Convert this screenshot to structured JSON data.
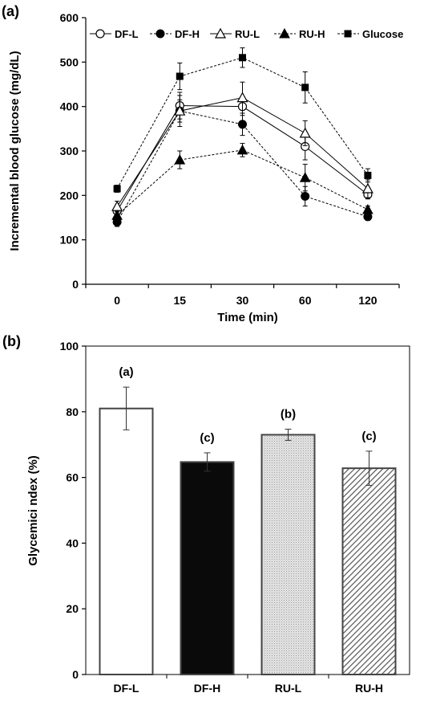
{
  "chart_data": [
    {
      "panel_label": "(a)",
      "type": "line",
      "xlabel": "Time (min)",
      "ylabel": "Incremental blood glucose (mg/dL)",
      "categories": [
        "0",
        "15",
        "30",
        "60",
        "120"
      ],
      "ylim": [
        0,
        600
      ],
      "yticks": [
        0,
        100,
        200,
        300,
        400,
        500,
        600
      ],
      "legend_position": "top",
      "grid": false,
      "series": [
        {
          "name": "DF-L",
          "marker": "open-circle",
          "dash": "solid",
          "values": [
            165,
            402,
            400,
            310,
            202
          ],
          "err": [
            12,
            30,
            20,
            30,
            10
          ]
        },
        {
          "name": "DF-H",
          "marker": "filled-circle",
          "dash": "dashed",
          "values": [
            140,
            390,
            360,
            198,
            152
          ],
          "err": [
            10,
            25,
            25,
            22,
            8
          ]
        },
        {
          "name": "RU-L",
          "marker": "open-triangle",
          "dash": "solid",
          "values": [
            175,
            390,
            420,
            340,
            215
          ],
          "err": [
            12,
            35,
            35,
            28,
            20
          ]
        },
        {
          "name": "RU-H",
          "marker": "filled-triangle",
          "dash": "dashed",
          "values": [
            155,
            280,
            302,
            240,
            168
          ],
          "err": [
            10,
            20,
            15,
            30,
            8
          ]
        },
        {
          "name": "Glucose",
          "marker": "filled-square",
          "dash": "dashed",
          "values": [
            215,
            468,
            510,
            443,
            245
          ],
          "err": [
            8,
            30,
            22,
            35,
            15
          ]
        }
      ]
    },
    {
      "panel_label": "(b)",
      "type": "bar",
      "xlabel": "",
      "ylabel": "Glycemici ndex (%)",
      "categories": [
        "DF-L",
        "DF-H",
        "RU-L",
        "RU-H"
      ],
      "values": [
        81,
        64.7,
        73,
        62.8
      ],
      "err": [
        6.5,
        2.8,
        1.7,
        5.2
      ],
      "annotations": [
        "(a)",
        "(c)",
        "(b)",
        "(c)"
      ],
      "fills": [
        "white",
        "black",
        "stippled-grey",
        "diagonal-hatch"
      ],
      "ylim": [
        0,
        100
      ],
      "yticks": [
        0,
        20,
        40,
        60,
        80,
        100
      ],
      "grid": false
    }
  ]
}
